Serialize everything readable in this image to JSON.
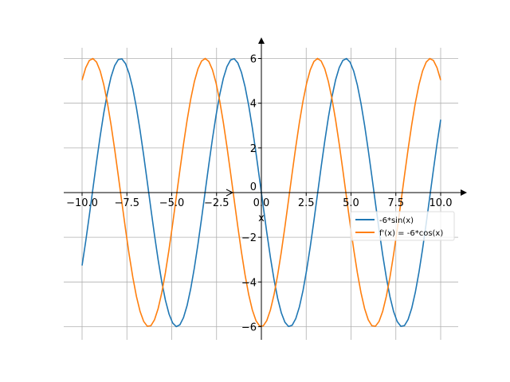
{
  "chart_data": {
    "type": "line",
    "title": "",
    "xlabel": "x",
    "ylabel": "",
    "xlim": [
      -10.5,
      10.5
    ],
    "ylim": [
      -6.6,
      6.6
    ],
    "grid": true,
    "legend_position": "center-right",
    "x_sampling": {
      "start": -10,
      "stop": 10,
      "n_points": 100
    },
    "series": [
      {
        "name": "-6*sin(x)",
        "function": "sin",
        "coefficient": -6,
        "color": "#1f77b4"
      },
      {
        "name": "f'(x) = -6*cos(x)",
        "function": "cos",
        "coefficient": -6,
        "color": "#ff7f0e"
      }
    ],
    "xticks": [
      -10,
      -7.5,
      -5,
      -2.5,
      0,
      2.5,
      5,
      7.5,
      10
    ],
    "xtick_labels": [
      "−10.0",
      "−7.5",
      "−5.0",
      "−2.5",
      "0.0",
      "2.5",
      "5.0",
      "7.5",
      "10.0"
    ],
    "yticks": [
      -6,
      -4,
      -2,
      0,
      2,
      4,
      6
    ],
    "ytick_labels": [
      "−6",
      "−4",
      "−2",
      "0",
      "2",
      "4",
      "6"
    ]
  }
}
